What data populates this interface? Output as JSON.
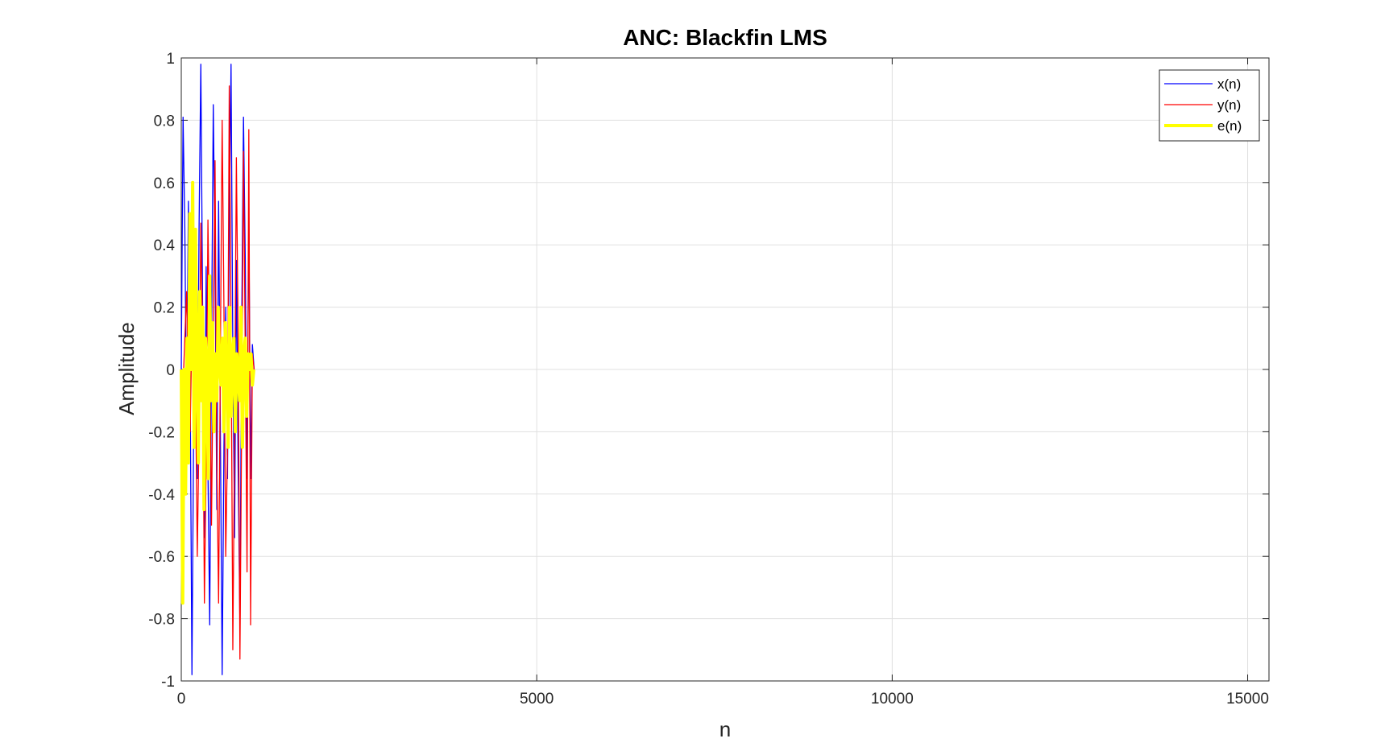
{
  "chart_data": {
    "type": "line",
    "title": "ANC: Blackfin LMS",
    "xlabel": "n",
    "ylabel": "Amplitude",
    "xlim": [
      0,
      15300
    ],
    "ylim": [
      -1,
      1
    ],
    "xticks": [
      0,
      5000,
      10000,
      15000
    ],
    "yticks": [
      -1,
      -0.8,
      -0.6,
      -0.4,
      -0.2,
      0,
      0.2,
      0.4,
      0.6,
      0.8,
      1
    ],
    "xtick_labels": [
      "0",
      "5000",
      "10000",
      "15000"
    ],
    "ytick_labels": [
      "-1",
      "-0.8",
      "-0.6",
      "-0.4",
      "-0.2",
      "0",
      "0.2",
      "0.4",
      "0.6",
      "0.8",
      "1"
    ],
    "grid": true,
    "legend_position": "top-right",
    "series": [
      {
        "name": "x(n)",
        "color": "#0000ff",
        "x": [
          0,
          25,
          50,
          75,
          100,
          125,
          150,
          175,
          200,
          225,
          250,
          275,
          300,
          325,
          350,
          375,
          400,
          425,
          450,
          475,
          500,
          525,
          550,
          575,
          600,
          625,
          650,
          675,
          700,
          725,
          750,
          775,
          800,
          825,
          850,
          875,
          900,
          925,
          950,
          975,
          1000,
          1025
        ],
        "y": [
          0,
          0.81,
          0.45,
          -0.2,
          0.54,
          -0.06,
          -0.98,
          -0.15,
          0.23,
          -0.35,
          0.45,
          0.98,
          0.2,
          -0.54,
          0.33,
          -0.32,
          -0.82,
          0.06,
          0.85,
          0.35,
          -0.45,
          0.54,
          -0.2,
          -0.98,
          -0.25,
          0.2,
          -0.35,
          0.45,
          0.98,
          0.06,
          -0.54,
          0.35,
          -0.32,
          -0.82,
          0.15,
          0.81,
          0.35,
          -0.35,
          0.5,
          -0.35,
          0.08,
          0
        ]
      },
      {
        "name": "y(n)",
        "color": "#ff0000",
        "x": [
          0,
          25,
          50,
          75,
          100,
          125,
          150,
          175,
          200,
          225,
          250,
          275,
          300,
          325,
          350,
          375,
          400,
          425,
          450,
          475,
          500,
          525,
          550,
          575,
          600,
          625,
          650,
          675,
          700,
          725,
          750,
          775,
          800,
          825,
          850,
          875,
          900,
          925,
          950,
          975,
          1000,
          1025
        ],
        "y": [
          0,
          -0.05,
          0.1,
          0.25,
          -0.1,
          -0.2,
          0.15,
          0.4,
          -0.05,
          -0.6,
          -0.2,
          0.47,
          0.1,
          -0.75,
          -0.3,
          0.48,
          0.05,
          -0.5,
          0.1,
          0.67,
          -0.3,
          -0.75,
          0.05,
          0.8,
          0.2,
          -0.6,
          -0.25,
          0.91,
          0.15,
          -0.9,
          -0.2,
          0.68,
          0.1,
          -0.93,
          -0.15,
          0.7,
          0.05,
          -0.65,
          0.77,
          -0.82,
          0.05,
          0
        ]
      },
      {
        "name": "e(n)",
        "color": "#ffff00",
        "x": [
          0,
          20,
          40,
          60,
          80,
          100,
          120,
          140,
          160,
          180,
          200,
          220,
          240,
          260,
          280,
          300,
          320,
          340,
          360,
          380,
          400,
          420,
          440,
          460,
          480,
          500,
          520,
          540,
          560,
          580,
          600,
          620,
          640,
          660,
          680,
          700,
          720,
          740,
          760,
          780,
          800,
          820,
          840,
          860,
          880,
          900,
          920,
          940,
          960,
          980,
          1000,
          1020
        ],
        "y": [
          0,
          -0.75,
          0.0,
          -0.4,
          0.1,
          -0.3,
          0.5,
          0.0,
          0.6,
          -0.25,
          0.45,
          0.0,
          -0.3,
          0.25,
          -0.1,
          0.2,
          -0.45,
          0.1,
          0.0,
          -0.35,
          0.3,
          -0.1,
          0.15,
          -0.2,
          0.05,
          -0.1,
          0.2,
          0.0,
          -0.05,
          0.1,
          -0.2,
          0.15,
          0.0,
          -0.25,
          0.2,
          -0.15,
          0.05,
          0.1,
          -0.2,
          0.05,
          0.0,
          -0.1,
          0.2,
          -0.25,
          0.05,
          0.1,
          -0.15,
          0.05,
          0.0,
          0.05,
          -0.05,
          0
        ]
      }
    ]
  }
}
